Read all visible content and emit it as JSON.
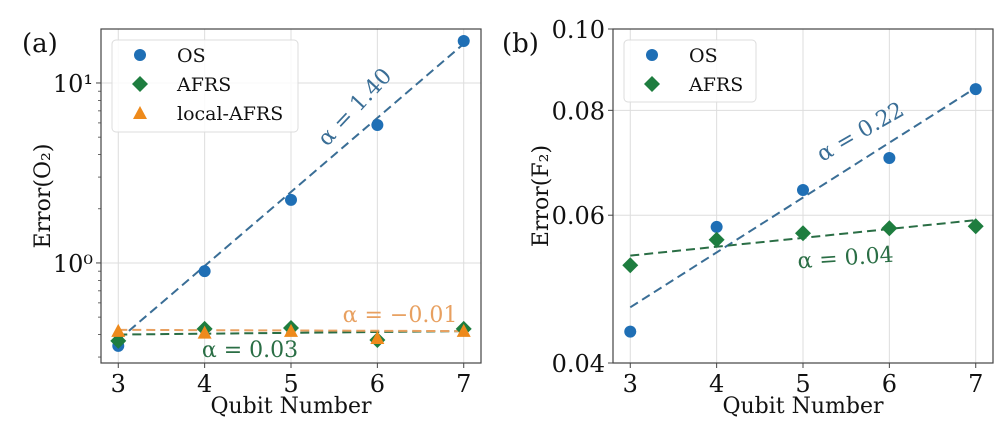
{
  "colors": {
    "os": "#1f6fb5",
    "afrs": "#1e7d3f",
    "local_afrs": "#ee8a1c",
    "os_fit": "#3a6e96",
    "afrs_fit": "#2a6e45",
    "local_fit": "#e8a060",
    "grid": "#dddddd",
    "axis": "#444444"
  },
  "chart_data": [
    {
      "type": "scatter",
      "panel_label": "(a)",
      "xlabel": "Qubit Number",
      "ylabel": "Error(O₂)",
      "yscale": "log",
      "ylim": [
        0.278,
        19.95
      ],
      "xlim": [
        2.8,
        7.2
      ],
      "x": [
        3,
        4,
        5,
        6,
        7
      ],
      "xticks": [
        "3",
        "4",
        "5",
        "6",
        "7"
      ],
      "yticks": [
        {
          "value": 1,
          "label": "10⁰"
        },
        {
          "value": 10,
          "label": "10¹"
        }
      ],
      "grid": true,
      "legend_position": "top-left",
      "series": [
        {
          "name": "OS",
          "marker": "circle",
          "color_key": "os",
          "values": [
            0.346,
            0.9,
            2.24,
            5.84,
            17.1
          ],
          "fit": {
            "from": 0.373,
            "to": 16.5,
            "label": "α = 1.40",
            "color_key": "os_fit"
          }
        },
        {
          "name": "AFRS",
          "marker": "diamond",
          "color_key": "afrs",
          "values": [
            0.369,
            0.43,
            0.435,
            0.373,
            0.43
          ],
          "fit": {
            "from": 0.4,
            "to": 0.418,
            "label": "α = 0.03",
            "color_key": "afrs_fit"
          }
        },
        {
          "name": "local-AFRS",
          "marker": "triangle",
          "color_key": "local_afrs",
          "values": [
            0.419,
            0.41,
            0.419,
            0.383,
            0.419
          ],
          "fit": {
            "from": 0.425,
            "to": 0.418,
            "label": "α = −0.01",
            "color_key": "local_fit"
          }
        }
      ]
    },
    {
      "type": "scatter",
      "panel_label": "(b)",
      "xlabel": "Qubit Number",
      "ylabel": "Error(F₂)",
      "yscale": "log",
      "ylim": [
        0.04,
        0.1
      ],
      "xlim": [
        2.8,
        7.2
      ],
      "x": [
        3,
        4,
        5,
        6,
        7
      ],
      "xticks": [
        "3",
        "4",
        "5",
        "6",
        "7"
      ],
      "yticks": [
        {
          "value": 0.04,
          "label": "0.04"
        },
        {
          "value": 0.06,
          "label": "0.06"
        },
        {
          "value": 0.08,
          "label": "0.08"
        },
        {
          "value": 0.1,
          "label": "0.10"
        }
      ],
      "grid": true,
      "legend_position": "top-left",
      "series": [
        {
          "name": "OS",
          "marker": "circle",
          "color_key": "os",
          "values": [
            0.0436,
            0.0581,
            0.0643,
            0.0702,
            0.0848
          ],
          "fit": {
            "from": 0.0466,
            "to": 0.0851,
            "label": "α = 0.22",
            "color_key": "os_fit"
          }
        },
        {
          "name": "AFRS",
          "marker": "diamond",
          "color_key": "afrs",
          "values": [
            0.0523,
            0.0561,
            0.0571,
            0.0579,
            0.0582
          ],
          "fit": {
            "from": 0.0537,
            "to": 0.0592,
            "label": "α = 0.04",
            "color_key": "afrs_fit"
          }
        }
      ]
    }
  ]
}
